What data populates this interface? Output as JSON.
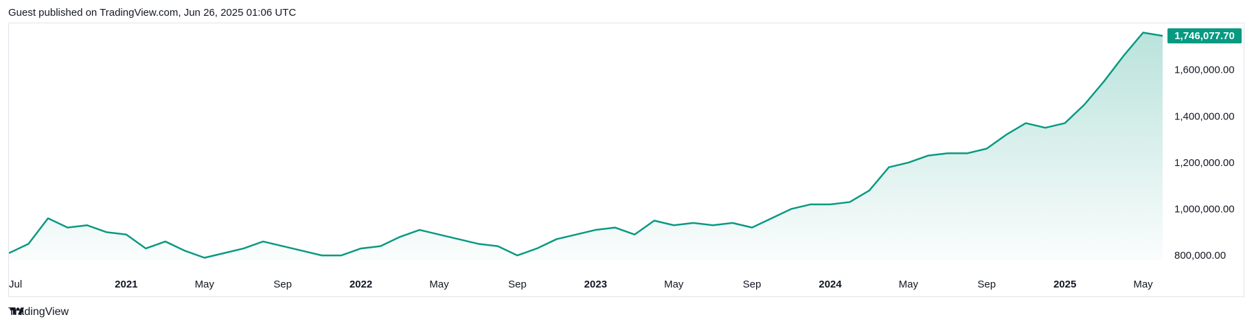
{
  "header": {
    "published_text": "Guest published on TradingView.com, Jun 26, 2025 01:06 UTC"
  },
  "footer": {
    "brand": "TradingView"
  },
  "colors": {
    "line": "#089981",
    "fill_top": "#089981",
    "badge": "#089981",
    "border": "#e0e3eb"
  },
  "chart_data": {
    "type": "area",
    "x": [
      "2020-07",
      "2020-08",
      "2020-09",
      "2020-10",
      "2020-11",
      "2020-12",
      "2021-01",
      "2021-02",
      "2021-03",
      "2021-04",
      "2021-05",
      "2021-06",
      "2021-07",
      "2021-08",
      "2021-09",
      "2021-10",
      "2021-11",
      "2021-12",
      "2022-01",
      "2022-02",
      "2022-03",
      "2022-04",
      "2022-05",
      "2022-06",
      "2022-07",
      "2022-08",
      "2022-09",
      "2022-10",
      "2022-11",
      "2022-12",
      "2023-01",
      "2023-02",
      "2023-03",
      "2023-04",
      "2023-05",
      "2023-06",
      "2023-07",
      "2023-08",
      "2023-09",
      "2023-10",
      "2023-11",
      "2023-12",
      "2024-01",
      "2024-02",
      "2024-03",
      "2024-04",
      "2024-05",
      "2024-06",
      "2024-07",
      "2024-08",
      "2024-09",
      "2024-10",
      "2024-11",
      "2024-12",
      "2025-01",
      "2025-02",
      "2025-03",
      "2025-04",
      "2025-05",
      "2025-06"
    ],
    "values": [
      810000,
      850000,
      960000,
      920000,
      930000,
      900000,
      890000,
      830000,
      860000,
      820000,
      790000,
      810000,
      830000,
      860000,
      840000,
      820000,
      800000,
      800000,
      830000,
      840000,
      880000,
      910000,
      890000,
      870000,
      850000,
      840000,
      800000,
      830000,
      870000,
      890000,
      910000,
      920000,
      890000,
      950000,
      930000,
      940000,
      930000,
      940000,
      920000,
      960000,
      1000000,
      1020000,
      1020000,
      1030000,
      1080000,
      1180000,
      1200000,
      1230000,
      1240000,
      1240000,
      1260000,
      1320000,
      1370000,
      1350000,
      1370000,
      1450000,
      1550000,
      1660000,
      1760000,
      1746077.7
    ],
    "last_value_label": "1,746,077.70",
    "y_ticks": [
      "1,600,000.00",
      "1,400,000.00",
      "1,200,000.00",
      "1,000,000.00",
      "800,000.00"
    ],
    "y_tick_values": [
      1600000,
      1400000,
      1200000,
      1000000,
      800000
    ],
    "ylim": [
      780000,
      1800000
    ],
    "x_ticks": [
      {
        "label": "Jul",
        "date": "2020-07",
        "bold": false
      },
      {
        "label": "2021",
        "date": "2021-01",
        "bold": true
      },
      {
        "label": "May",
        "date": "2021-05",
        "bold": false
      },
      {
        "label": "Sep",
        "date": "2021-09",
        "bold": false
      },
      {
        "label": "2022",
        "date": "2022-01",
        "bold": true
      },
      {
        "label": "May",
        "date": "2022-05",
        "bold": false
      },
      {
        "label": "Sep",
        "date": "2022-09",
        "bold": false
      },
      {
        "label": "2023",
        "date": "2023-01",
        "bold": true
      },
      {
        "label": "May",
        "date": "2023-05",
        "bold": false
      },
      {
        "label": "Sep",
        "date": "2023-09",
        "bold": false
      },
      {
        "label": "2024",
        "date": "2024-01",
        "bold": true
      },
      {
        "label": "May",
        "date": "2024-05",
        "bold": false
      },
      {
        "label": "Sep",
        "date": "2024-09",
        "bold": false
      },
      {
        "label": "2025",
        "date": "2025-01",
        "bold": true
      },
      {
        "label": "May",
        "date": "2025-05",
        "bold": false
      }
    ],
    "grid": false,
    "legend": "none"
  }
}
